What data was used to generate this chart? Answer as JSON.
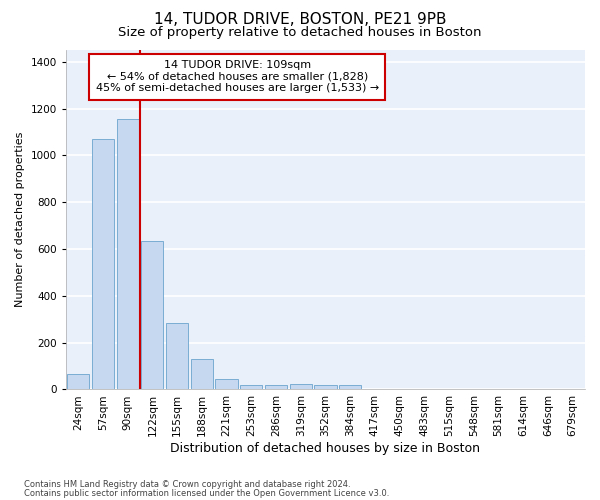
{
  "title1": "14, TUDOR DRIVE, BOSTON, PE21 9PB",
  "title2": "Size of property relative to detached houses in Boston",
  "xlabel": "Distribution of detached houses by size in Boston",
  "ylabel": "Number of detached properties",
  "categories": [
    "24sqm",
    "57sqm",
    "90sqm",
    "122sqm",
    "155sqm",
    "188sqm",
    "221sqm",
    "253sqm",
    "286sqm",
    "319sqm",
    "352sqm",
    "384sqm",
    "417sqm",
    "450sqm",
    "483sqm",
    "515sqm",
    "548sqm",
    "581sqm",
    "614sqm",
    "646sqm",
    "679sqm"
  ],
  "values": [
    65,
    1070,
    1155,
    635,
    285,
    130,
    45,
    20,
    20,
    25,
    20,
    20,
    0,
    0,
    0,
    0,
    0,
    0,
    0,
    0,
    0
  ],
  "bar_color": "#c5d8f0",
  "bar_edgecolor": "#7aadd4",
  "vline_color": "#cc0000",
  "annotation_line1": "14 TUDOR DRIVE: 109sqm",
  "annotation_line2": "← 54% of detached houses are smaller (1,828)",
  "annotation_line3": "45% of semi-detached houses are larger (1,533) →",
  "annotation_box_edgecolor": "#cc0000",
  "annotation_box_facecolor": "#ffffff",
  "ylim": [
    0,
    1450
  ],
  "yticks": [
    0,
    200,
    400,
    600,
    800,
    1000,
    1200,
    1400
  ],
  "background_color": "#eaf0fa",
  "grid_color": "#ffffff",
  "footer1": "Contains HM Land Registry data © Crown copyright and database right 2024.",
  "footer2": "Contains public sector information licensed under the Open Government Licence v3.0.",
  "title1_fontsize": 11,
  "title2_fontsize": 9.5,
  "xlabel_fontsize": 9,
  "ylabel_fontsize": 8,
  "tick_fontsize": 7.5,
  "annotation_fontsize": 8
}
